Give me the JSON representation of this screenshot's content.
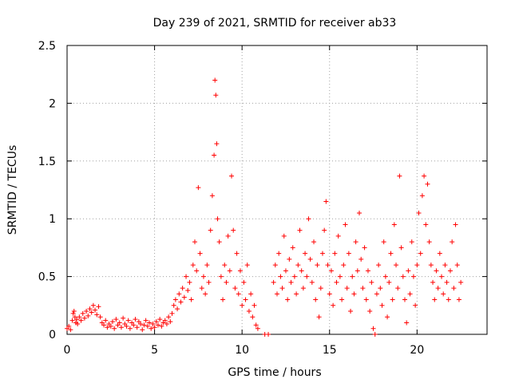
{
  "chart_data": {
    "type": "scatter",
    "title": "Day 239 of 2021, SRMTID for receiver ab33",
    "xlabel": "GPS time / hours",
    "ylabel": "SRMTID / TECUs",
    "xlim": [
      0,
      24
    ],
    "ylim": [
      0,
      2.5
    ],
    "x_ticks": [
      0,
      5,
      10,
      15,
      20
    ],
    "y_ticks": [
      0,
      0.5,
      1,
      1.5,
      2,
      2.5
    ],
    "x_tick_labels": [
      "0",
      "5",
      "10",
      "15",
      "20"
    ],
    "y_tick_labels": [
      "0",
      "0.5",
      "1",
      "1.5",
      "2",
      "2.5"
    ],
    "grid": true,
    "marker": "plus",
    "color": "#ff0000",
    "series": [
      {
        "name": "SRMTID",
        "points": [
          [
            0.0,
            0.05
          ],
          [
            0.1,
            0.07
          ],
          [
            0.2,
            0.04
          ],
          [
            0.3,
            0.12
          ],
          [
            0.35,
            0.18
          ],
          [
            0.4,
            0.2
          ],
          [
            0.45,
            0.15
          ],
          [
            0.5,
            0.1
          ],
          [
            0.55,
            0.13
          ],
          [
            0.6,
            0.09
          ],
          [
            0.7,
            0.15
          ],
          [
            0.8,
            0.12
          ],
          [
            0.9,
            0.18
          ],
          [
            1.0,
            0.14
          ],
          [
            1.1,
            0.2
          ],
          [
            1.2,
            0.16
          ],
          [
            1.3,
            0.22
          ],
          [
            1.4,
            0.19
          ],
          [
            1.5,
            0.25
          ],
          [
            1.6,
            0.21
          ],
          [
            1.7,
            0.17
          ],
          [
            1.8,
            0.24
          ],
          [
            1.9,
            0.15
          ],
          [
            2.0,
            0.1
          ],
          [
            2.1,
            0.08
          ],
          [
            2.2,
            0.12
          ],
          [
            2.3,
            0.06
          ],
          [
            2.4,
            0.09
          ],
          [
            2.5,
            0.07
          ],
          [
            2.6,
            0.11
          ],
          [
            2.7,
            0.05
          ],
          [
            2.8,
            0.13
          ],
          [
            2.9,
            0.08
          ],
          [
            3.0,
            0.1
          ],
          [
            3.1,
            0.06
          ],
          [
            3.2,
            0.14
          ],
          [
            3.3,
            0.09
          ],
          [
            3.4,
            0.07
          ],
          [
            3.5,
            0.12
          ],
          [
            3.6,
            0.05
          ],
          [
            3.7,
            0.1
          ],
          [
            3.8,
            0.08
          ],
          [
            3.9,
            0.13
          ],
          [
            4.0,
            0.06
          ],
          [
            4.1,
            0.11
          ],
          [
            4.2,
            0.09
          ],
          [
            4.3,
            0.04
          ],
          [
            4.4,
            0.08
          ],
          [
            4.5,
            0.12
          ],
          [
            4.6,
            0.07
          ],
          [
            4.7,
            0.1
          ],
          [
            4.8,
            0.05
          ],
          [
            4.9,
            0.09
          ],
          [
            5.0,
            0.06
          ],
          [
            5.1,
            0.11
          ],
          [
            5.2,
            0.08
          ],
          [
            5.3,
            0.13
          ],
          [
            5.4,
            0.07
          ],
          [
            5.5,
            0.1
          ],
          [
            5.6,
            0.12
          ],
          [
            5.7,
            0.09
          ],
          [
            5.8,
            0.15
          ],
          [
            5.9,
            0.11
          ],
          [
            6.0,
            0.18
          ],
          [
            6.1,
            0.25
          ],
          [
            6.2,
            0.3
          ],
          [
            6.3,
            0.22
          ],
          [
            6.4,
            0.35
          ],
          [
            6.5,
            0.28
          ],
          [
            6.6,
            0.4
          ],
          [
            6.7,
            0.32
          ],
          [
            6.8,
            0.5
          ],
          [
            6.9,
            0.38
          ],
          [
            7.0,
            0.45
          ],
          [
            7.1,
            0.3
          ],
          [
            7.2,
            0.6
          ],
          [
            7.3,
            0.8
          ],
          [
            7.4,
            0.55
          ],
          [
            7.5,
            1.27
          ],
          [
            7.6,
            0.7
          ],
          [
            7.7,
            0.4
          ],
          [
            7.8,
            0.5
          ],
          [
            7.9,
            0.35
          ],
          [
            8.0,
            0.6
          ],
          [
            8.1,
            0.45
          ],
          [
            8.2,
            0.9
          ],
          [
            8.3,
            1.2
          ],
          [
            8.4,
            1.55
          ],
          [
            8.45,
            2.2
          ],
          [
            8.5,
            2.07
          ],
          [
            8.55,
            1.65
          ],
          [
            8.6,
            1.0
          ],
          [
            8.7,
            0.8
          ],
          [
            8.8,
            0.5
          ],
          [
            8.9,
            0.3
          ],
          [
            9.0,
            0.6
          ],
          [
            9.1,
            0.45
          ],
          [
            9.2,
            0.85
          ],
          [
            9.3,
            0.55
          ],
          [
            9.4,
            1.37
          ],
          [
            9.5,
            0.9
          ],
          [
            9.6,
            0.4
          ],
          [
            9.7,
            0.7
          ],
          [
            9.8,
            0.35
          ],
          [
            9.9,
            0.55
          ],
          [
            10.0,
            0.25
          ],
          [
            10.1,
            0.45
          ],
          [
            10.2,
            0.3
          ],
          [
            10.3,
            0.6
          ],
          [
            10.4,
            0.2
          ],
          [
            10.5,
            0.35
          ],
          [
            10.6,
            0.15
          ],
          [
            10.7,
            0.25
          ],
          [
            10.8,
            0.08
          ],
          [
            10.9,
            0.05
          ],
          [
            11.3,
            0.0
          ],
          [
            11.5,
            0.0
          ],
          [
            11.8,
            0.45
          ],
          [
            11.9,
            0.6
          ],
          [
            12.0,
            0.35
          ],
          [
            12.1,
            0.7
          ],
          [
            12.2,
            0.5
          ],
          [
            12.3,
            0.4
          ],
          [
            12.4,
            0.85
          ],
          [
            12.5,
            0.55
          ],
          [
            12.6,
            0.3
          ],
          [
            12.7,
            0.65
          ],
          [
            12.8,
            0.45
          ],
          [
            12.9,
            0.75
          ],
          [
            13.0,
            0.5
          ],
          [
            13.1,
            0.35
          ],
          [
            13.2,
            0.6
          ],
          [
            13.3,
            0.9
          ],
          [
            13.4,
            0.55
          ],
          [
            13.5,
            0.4
          ],
          [
            13.6,
            0.7
          ],
          [
            13.7,
            0.5
          ],
          [
            13.8,
            1.0
          ],
          [
            13.9,
            0.65
          ],
          [
            14.0,
            0.45
          ],
          [
            14.1,
            0.8
          ],
          [
            14.2,
            0.3
          ],
          [
            14.3,
            0.6
          ],
          [
            14.4,
            0.15
          ],
          [
            14.5,
            0.4
          ],
          [
            14.6,
            0.7
          ],
          [
            14.7,
            0.9
          ],
          [
            14.8,
            1.15
          ],
          [
            14.9,
            0.6
          ],
          [
            15.0,
            0.35
          ],
          [
            15.1,
            0.55
          ],
          [
            15.2,
            0.25
          ],
          [
            15.3,
            0.7
          ],
          [
            15.4,
            0.45
          ],
          [
            15.5,
            0.85
          ],
          [
            15.6,
            0.5
          ],
          [
            15.7,
            0.3
          ],
          [
            15.8,
            0.6
          ],
          [
            15.9,
            0.95
          ],
          [
            16.0,
            0.4
          ],
          [
            16.1,
            0.7
          ],
          [
            16.2,
            0.2
          ],
          [
            16.3,
            0.5
          ],
          [
            16.4,
            0.35
          ],
          [
            16.5,
            0.8
          ],
          [
            16.6,
            0.55
          ],
          [
            16.7,
            1.05
          ],
          [
            16.8,
            0.65
          ],
          [
            16.9,
            0.4
          ],
          [
            17.0,
            0.75
          ],
          [
            17.1,
            0.3
          ],
          [
            17.2,
            0.55
          ],
          [
            17.3,
            0.2
          ],
          [
            17.4,
            0.45
          ],
          [
            17.5,
            0.05
          ],
          [
            17.6,
            0.0
          ],
          [
            17.7,
            0.35
          ],
          [
            17.8,
            0.6
          ],
          [
            17.9,
            0.4
          ],
          [
            18.0,
            0.25
          ],
          [
            18.1,
            0.8
          ],
          [
            18.2,
            0.5
          ],
          [
            18.3,
            0.15
          ],
          [
            18.4,
            0.45
          ],
          [
            18.5,
            0.7
          ],
          [
            18.6,
            0.3
          ],
          [
            18.7,
            0.95
          ],
          [
            18.8,
            0.6
          ],
          [
            18.9,
            0.4
          ],
          [
            19.0,
            1.37
          ],
          [
            19.1,
            0.75
          ],
          [
            19.2,
            0.5
          ],
          [
            19.3,
            0.3
          ],
          [
            19.4,
            0.1
          ],
          [
            19.5,
            0.55
          ],
          [
            19.6,
            0.35
          ],
          [
            19.7,
            0.8
          ],
          [
            19.8,
            0.5
          ],
          [
            19.9,
            0.25
          ],
          [
            20.0,
            0.6
          ],
          [
            20.1,
            1.05
          ],
          [
            20.2,
            0.7
          ],
          [
            20.3,
            1.2
          ],
          [
            20.4,
            1.37
          ],
          [
            20.5,
            0.95
          ],
          [
            20.6,
            1.3
          ],
          [
            20.7,
            0.8
          ],
          [
            20.8,
            0.6
          ],
          [
            20.9,
            0.45
          ],
          [
            21.0,
            0.3
          ],
          [
            21.1,
            0.55
          ],
          [
            21.2,
            0.4
          ],
          [
            21.3,
            0.7
          ],
          [
            21.4,
            0.5
          ],
          [
            21.5,
            0.35
          ],
          [
            21.6,
            0.6
          ],
          [
            21.7,
            0.45
          ],
          [
            21.8,
            0.3
          ],
          [
            21.9,
            0.55
          ],
          [
            22.0,
            0.8
          ],
          [
            22.1,
            0.4
          ],
          [
            22.2,
            0.95
          ],
          [
            22.3,
            0.6
          ],
          [
            22.4,
            0.3
          ],
          [
            22.5,
            0.45
          ]
        ]
      }
    ]
  }
}
